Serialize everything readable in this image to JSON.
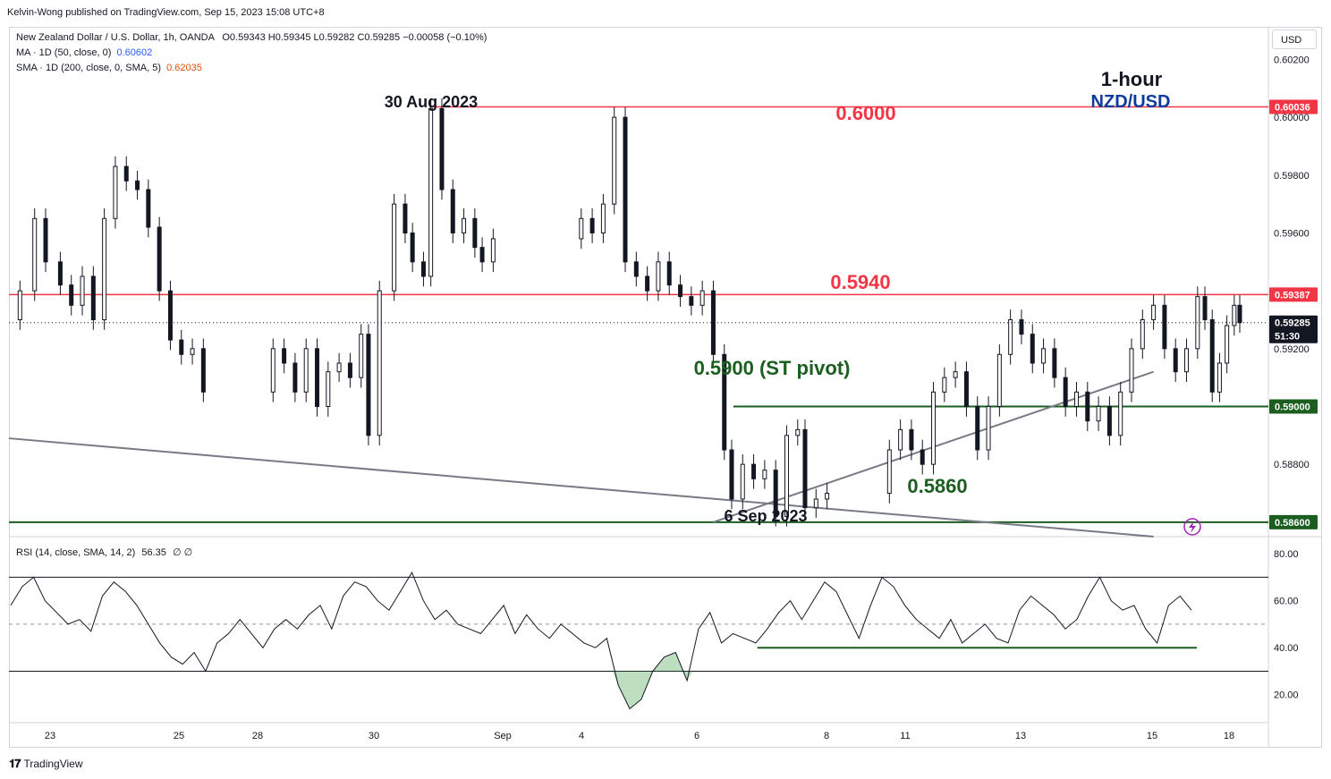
{
  "publisher_line": "Kelvin-Wong published on TradingView.com, Sep 15, 2023 15:08 UTC+8",
  "currency_button": "USD",
  "branding": "TradingView",
  "info": {
    "symbol": "New Zealand Dollar / U.S. Dollar, 1h, OANDA",
    "ohlc": "O0.59343  H0.59345  L0.59282  C0.59285  −0.00058 (−0.10%)",
    "ma_label": "MA · 1D (50, close, 0)",
    "ma_value": "0.60602",
    "sma_label": "SMA · 1D (200, close, 0, SMA, 5)",
    "sma_value": "0.62035"
  },
  "annotations": {
    "timeframe": "1-hour",
    "pair": "NZD/USD",
    "high_date": "30 Aug 2023",
    "low_date": "6 Sep 2023",
    "level_6000": "0.6000",
    "level_5940": "0.5940",
    "level_5900": "0.5900 (ST pivot)",
    "level_5860": "0.5860"
  },
  "price_axis": {
    "ticks": [
      "0.60200",
      "0.60000",
      "0.59800",
      "0.59600",
      "0.59200",
      "0.58800"
    ],
    "badges": [
      {
        "label": "0.60036",
        "color": "#f23645",
        "text_color": "#ffffff"
      },
      {
        "label": "0.59387",
        "color": "#f23645",
        "text_color": "#ffffff"
      },
      {
        "label": "0.59285",
        "color": "#131722",
        "text_color": "#ffffff"
      },
      {
        "label": "51:30",
        "color": "#131722",
        "text_color": "#ffffff"
      },
      {
        "label": "0.59000",
        "color": "#1b5e20",
        "text_color": "#ffffff"
      },
      {
        "label": "0.58600",
        "color": "#1b5e20",
        "text_color": "#ffffff"
      }
    ]
  },
  "rsi": {
    "label": "RSI (14, close, SMA, 14, 2)",
    "value": "56.35",
    "extra": "∅  ∅",
    "ticks": [
      "80.00",
      "60.00",
      "40.00",
      "20.00"
    ]
  },
  "time_axis": [
    "23",
    "25",
    "28",
    "30",
    "Sep",
    "4",
    "6",
    "8",
    "11",
    "13",
    "15",
    "18"
  ],
  "colors": {
    "resistance": "#f23645",
    "support": "#1b5e20",
    "trendline": "#787b86",
    "candle": "#131722",
    "rsi_line": "#131722",
    "rsi_oversold_fill": "#43a047",
    "accent_blue": "#0d3b9c",
    "lightning_icon": "#9c27b0"
  },
  "chart_data": {
    "type": "candlestick",
    "symbol": "NZD/USD",
    "interval": "1h",
    "x_range": [
      "2023-08-22",
      "2023-09-18"
    ],
    "ylim": [
      0.5855,
      0.6022
    ],
    "key_points": [
      {
        "date": "2023-08-30",
        "label": "30 Aug 2023",
        "price": 0.6003
      },
      {
        "date": "2023-09-06",
        "label": "6 Sep 2023",
        "price": 0.586
      }
    ],
    "horizontal_levels": [
      {
        "price": 0.60036,
        "label": "0.6000",
        "kind": "resistance"
      },
      {
        "price": 0.59387,
        "label": "0.5940",
        "kind": "resistance"
      },
      {
        "price": 0.59,
        "label": "0.5900 (ST pivot)",
        "kind": "support"
      },
      {
        "price": 0.586,
        "label": "0.5860",
        "kind": "support"
      }
    ],
    "trendlines": [
      {
        "from": {
          "date": "2023-08-22",
          "price": 0.5889
        },
        "to": {
          "date": "2023-09-17",
          "price": 0.5855
        }
      },
      {
        "from": {
          "date": "2023-09-07",
          "price": 0.586
        },
        "to": {
          "date": "2023-09-17",
          "price": 0.5912
        }
      }
    ],
    "close_series": [
      [
        "2023-08-22 00:00",
        0.593
      ],
      [
        "2023-08-22 06:00",
        0.594
      ],
      [
        "2023-08-22 14:00",
        0.5965
      ],
      [
        "2023-08-22 20:00",
        0.595
      ],
      [
        "2023-08-23 04:00",
        0.5942
      ],
      [
        "2023-08-23 10:00",
        0.5935
      ],
      [
        "2023-08-23 16:00",
        0.5945
      ],
      [
        "2023-08-23 22:00",
        0.593
      ],
      [
        "2023-08-24 04:00",
        0.5965
      ],
      [
        "2023-08-24 10:00",
        0.5983
      ],
      [
        "2023-08-24 16:00",
        0.5978
      ],
      [
        "2023-08-24 22:00",
        0.5975
      ],
      [
        "2023-08-25 04:00",
        0.5962
      ],
      [
        "2023-08-25 10:00",
        0.594
      ],
      [
        "2023-08-25 16:00",
        0.5923
      ],
      [
        "2023-08-25 22:00",
        0.5918
      ],
      [
        "2023-08-26 04:00",
        0.592
      ],
      [
        "2023-08-26 10:00",
        0.5905
      ],
      [
        "2023-08-28 00:00",
        0.592
      ],
      [
        "2023-08-28 06:00",
        0.5915
      ],
      [
        "2023-08-28 12:00",
        0.5905
      ],
      [
        "2023-08-28 18:00",
        0.592
      ],
      [
        "2023-08-29 00:00",
        0.59
      ],
      [
        "2023-08-29 06:00",
        0.5912
      ],
      [
        "2023-08-29 12:00",
        0.5915
      ],
      [
        "2023-08-29 18:00",
        0.591
      ],
      [
        "2023-08-30 00:00",
        0.5925
      ],
      [
        "2023-08-30 04:00",
        0.589
      ],
      [
        "2023-08-30 10:00",
        0.594
      ],
      [
        "2023-08-30 18:00",
        0.597
      ],
      [
        "2023-08-31 00:00",
        0.596
      ],
      [
        "2023-08-31 04:00",
        0.595
      ],
      [
        "2023-08-31 10:00",
        0.5945
      ],
      [
        "2023-08-31 14:00",
        0.6003
      ],
      [
        "2023-08-31 20:00",
        0.5975
      ],
      [
        "2023-09-01 02:00",
        0.596
      ],
      [
        "2023-09-01 08:00",
        0.5965
      ],
      [
        "2023-09-01 14:00",
        0.5955
      ],
      [
        "2023-09-01 18:00",
        0.595
      ],
      [
        "2023-09-02 00:00",
        0.5958
      ],
      [
        "2023-09-04 00:00",
        0.5965
      ],
      [
        "2023-09-04 06:00",
        0.596
      ],
      [
        "2023-09-04 12:00",
        0.597
      ],
      [
        "2023-09-04 18:00",
        0.6
      ],
      [
        "2023-09-05 00:00",
        0.595
      ],
      [
        "2023-09-05 06:00",
        0.5945
      ],
      [
        "2023-09-05 12:00",
        0.594
      ],
      [
        "2023-09-05 18:00",
        0.595
      ],
      [
        "2023-09-06 00:00",
        0.5942
      ],
      [
        "2023-09-06 06:00",
        0.5938
      ],
      [
        "2023-09-06 12:00",
        0.5935
      ],
      [
        "2023-09-06 18:00",
        0.594
      ],
      [
        "2023-09-07 00:00",
        0.5918
      ],
      [
        "2023-09-07 06:00",
        0.5885
      ],
      [
        "2023-09-07 10:00",
        0.5868
      ],
      [
        "2023-09-07 16:00",
        0.588
      ],
      [
        "2023-09-07 22:00",
        0.5875
      ],
      [
        "2023-09-08 04:00",
        0.5878
      ],
      [
        "2023-09-08 10:00",
        0.5862
      ],
      [
        "2023-09-08 16:00",
        0.589
      ],
      [
        "2023-09-08 22:00",
        0.5892
      ],
      [
        "2023-09-09 02:00",
        0.5865
      ],
      [
        "2023-09-09 08:00",
        0.5868
      ],
      [
        "2023-09-09 14:00",
        0.587
      ],
      [
        "2023-09-11 00:00",
        0.5885
      ],
      [
        "2023-09-11 06:00",
        0.5892
      ],
      [
        "2023-09-11 12:00",
        0.5885
      ],
      [
        "2023-09-11 18:00",
        0.588
      ],
      [
        "2023-09-12 00:00",
        0.5905
      ],
      [
        "2023-09-12 06:00",
        0.591
      ],
      [
        "2023-09-12 12:00",
        0.5912
      ],
      [
        "2023-09-12 18:00",
        0.59
      ],
      [
        "2023-09-13 00:00",
        0.5885
      ],
      [
        "2023-09-13 06:00",
        0.59
      ],
      [
        "2023-09-13 12:00",
        0.5918
      ],
      [
        "2023-09-13 18:00",
        0.593
      ],
      [
        "2023-09-14 00:00",
        0.5925
      ],
      [
        "2023-09-14 06:00",
        0.5915
      ],
      [
        "2023-09-14 12:00",
        0.592
      ],
      [
        "2023-09-14 18:00",
        0.591
      ],
      [
        "2023-09-15 00:00",
        0.59
      ],
      [
        "2023-09-15 06:00",
        0.5905
      ],
      [
        "2023-09-15 12:00",
        0.5895
      ],
      [
        "2023-09-15 18:00",
        0.59
      ],
      [
        "2023-09-16 00:00",
        0.589
      ],
      [
        "2023-09-16 06:00",
        0.5905
      ],
      [
        "2023-09-16 12:00",
        0.592
      ],
      [
        "2023-09-16 18:00",
        0.593
      ],
      [
        "2023-09-17 00:00",
        0.5935
      ],
      [
        "2023-09-17 06:00",
        0.592
      ],
      [
        "2023-09-17 12:00",
        0.5912
      ],
      [
        "2023-09-17 18:00",
        0.592
      ],
      [
        "2023-09-18 00:00",
        0.5938
      ],
      [
        "2023-09-18 04:00",
        0.593
      ],
      [
        "2023-09-18 08:00",
        0.5905
      ],
      [
        "2023-09-18 12:00",
        0.5915
      ],
      [
        "2023-09-18 16:00",
        0.5928
      ],
      [
        "2023-09-18 20:00",
        0.5935
      ],
      [
        "2023-09-18 23:00",
        0.5929
      ]
    ],
    "rsi_series": [
      58,
      66,
      70,
      60,
      55,
      50,
      52,
      47,
      62,
      68,
      64,
      58,
      50,
      42,
      36,
      33,
      38,
      30,
      42,
      46,
      52,
      46,
      40,
      48,
      52,
      48,
      54,
      58,
      48,
      62,
      68,
      66,
      60,
      56,
      64,
      72,
      60,
      52,
      56,
      50,
      48,
      46,
      52,
      58,
      46,
      54,
      48,
      44,
      50,
      46,
      42,
      40,
      44,
      24,
      14,
      18,
      30,
      36,
      38,
      26,
      48,
      55,
      42,
      46,
      44,
      42,
      48,
      55,
      60,
      52,
      60,
      68,
      64,
      54,
      44,
      58,
      70,
      66,
      58,
      52,
      48,
      44,
      52,
      42,
      46,
      50,
      44,
      42,
      56,
      62,
      58,
      54,
      48,
      52,
      62,
      70,
      60,
      56,
      58,
      48,
      42,
      58,
      62,
      56
    ],
    "rsi_ylim": [
      10,
      85
    ],
    "rsi_levels": [
      70,
      50,
      30
    ],
    "rsi_support": {
      "from": "2023-09-08",
      "to": "2023-09-18",
      "value": 40
    }
  }
}
